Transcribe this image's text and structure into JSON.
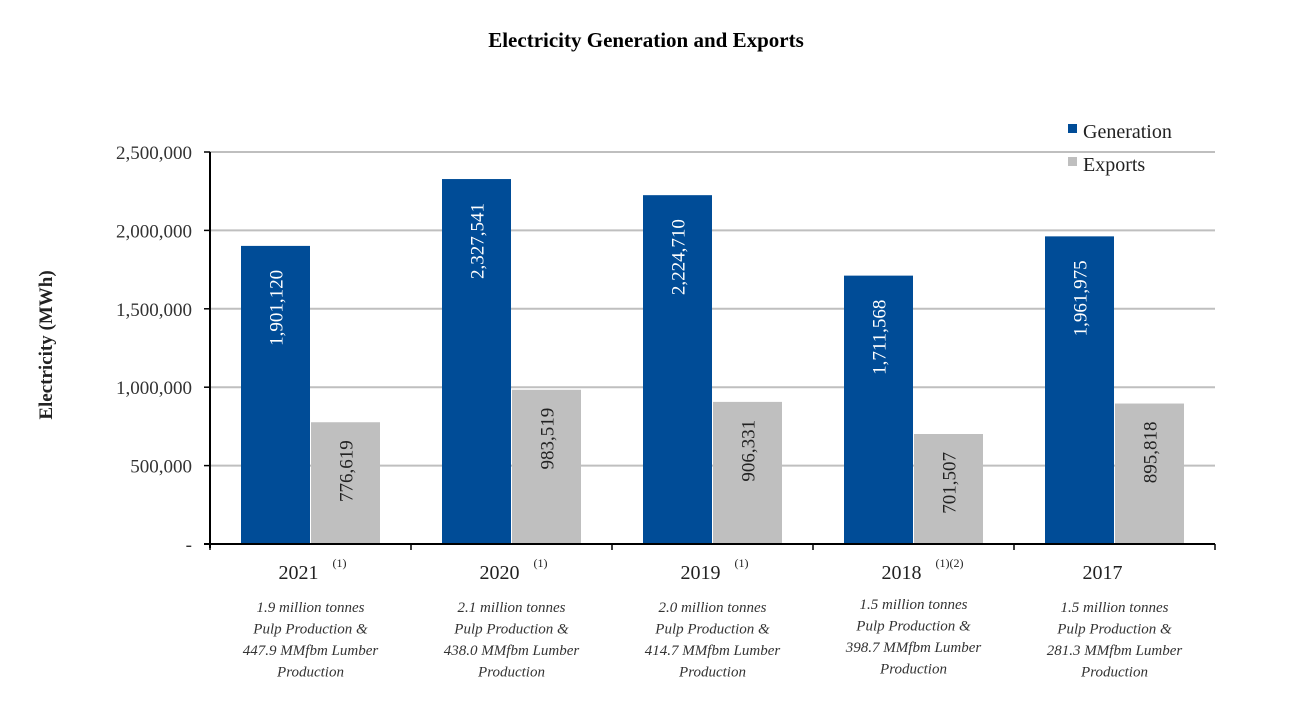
{
  "chart_data": {
    "type": "bar",
    "title": "Electricity Generation and Exports",
    "xlabel": "",
    "ylabel": "Electricity (MWh)",
    "ylim": [
      0,
      2500000
    ],
    "yticks": [
      0,
      500000,
      1000000,
      1500000,
      2000000,
      2500000
    ],
    "ytick_labels": [
      "-",
      "500,000",
      "1,000,000",
      "1,500,000",
      "2,000,000",
      "2,500,000"
    ],
    "grid": true,
    "legend_position": "top-right",
    "categories": [
      "2021",
      "2020",
      "2019",
      "2018",
      "2017"
    ],
    "category_superscripts": [
      "(1)",
      "(1)",
      "(1)",
      "(1)(2)",
      ""
    ],
    "category_notes": [
      [
        "1.9 million tonnes",
        "Pulp Production &",
        "447.9 MMfbm Lumber",
        "Production"
      ],
      [
        "2.1 million tonnes",
        "Pulp Production &",
        "438.0 MMfbm Lumber",
        "Production"
      ],
      [
        "2.0 million tonnes",
        "Pulp Production &",
        "414.7 MMfbm Lumber",
        "Production"
      ],
      [
        "1.5 million tonnes",
        "Pulp Production &",
        "398.7 MMfbm Lumber",
        "Production"
      ],
      [
        "1.5 million tonnes",
        "Pulp Production &",
        "281.3 MMfbm Lumber",
        "Production"
      ]
    ],
    "series": [
      {
        "name": "Generation",
        "color": "#004C97",
        "label_color": "#ffffff",
        "values": [
          1901120,
          2327541,
          2224710,
          1711568,
          1961975
        ],
        "labels": [
          "1,901,120",
          "2,327,541",
          "2,224,710",
          "1,711,568",
          "1,961,975"
        ]
      },
      {
        "name": "Exports",
        "color": "#BFBFBF",
        "label_color": "#222222",
        "values": [
          776619,
          983519,
          906331,
          701507,
          895818
        ],
        "labels": [
          "776,619",
          "983,519",
          "906,331",
          "701,507",
          "895,818"
        ]
      }
    ]
  }
}
